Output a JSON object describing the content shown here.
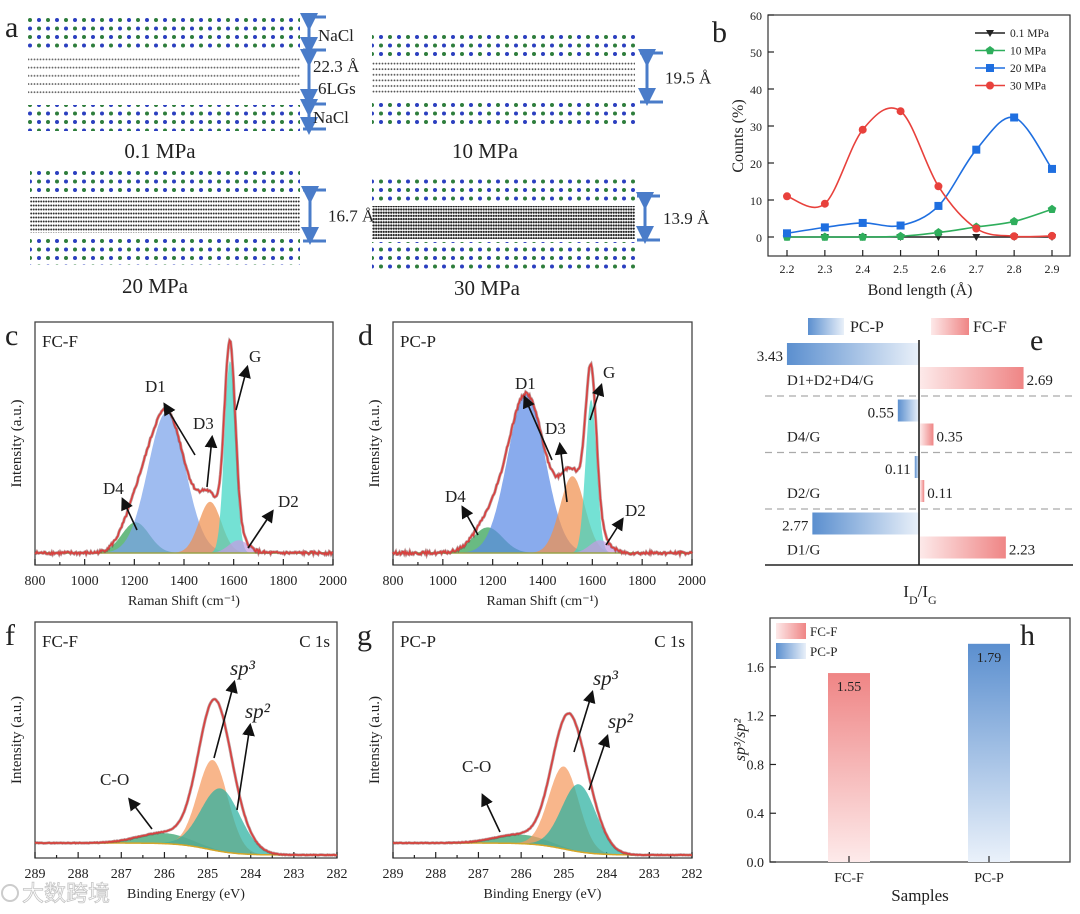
{
  "panel_labels": [
    "a",
    "b",
    "c",
    "d",
    "e",
    "f",
    "g",
    "h"
  ],
  "panel_a": {
    "snapshots": [
      {
        "pressure": "0.1 MPa",
        "spacing": "22.3 Å",
        "top_layer": "NaCl",
        "graphene": "6LGs",
        "bottom_layer": "NaCl"
      },
      {
        "pressure": "10 MPa",
        "spacing": "19.5 Å"
      },
      {
        "pressure": "20 MPa",
        "spacing": "16.7 Å"
      },
      {
        "pressure": "30 MPa",
        "spacing": "13.9 Å"
      }
    ],
    "colors": {
      "na": "#2b3fbf",
      "cl": "#2e7d3c",
      "carbon": "#5a5a5a",
      "bracket": "#4a7cc9"
    }
  },
  "chart_data": [
    {
      "type": "line",
      "xlabel": "Bond length (Å)",
      "ylabel": "Counts (%)",
      "x": [
        2.2,
        2.3,
        2.4,
        2.5,
        2.6,
        2.7,
        2.8,
        2.9
      ],
      "xticks": [
        "2.2",
        "2.3",
        "2.4",
        "2.5",
        "2.6",
        "2.7",
        "2.8",
        "2.9"
      ],
      "ylim": [
        -5,
        60
      ],
      "yticks": [
        "0",
        "10",
        "20",
        "30",
        "40",
        "50",
        "60"
      ],
      "legend": "top-right",
      "series": [
        {
          "name": "0.1 MPa",
          "color": "#222222",
          "marker": "triangle-down",
          "values": [
            0,
            0,
            0,
            0,
            0,
            0,
            0,
            0
          ]
        },
        {
          "name": "10 MPa",
          "color": "#2fae5c",
          "marker": "pentagon",
          "values": [
            0,
            0,
            0,
            0.2,
            1.2,
            2.7,
            4.2,
            7.5
          ]
        },
        {
          "name": "20 MPa",
          "color": "#1f6fe0",
          "marker": "square",
          "values": [
            1,
            2.6,
            3.8,
            3.1,
            8.4,
            23.6,
            32.3,
            18.4
          ]
        },
        {
          "name": "30 MPa",
          "color": "#e8413c",
          "marker": "circle",
          "values": [
            11,
            9,
            29,
            34,
            13.7,
            2.3,
            0.2,
            0.3
          ]
        }
      ]
    },
    {
      "type": "area",
      "inset_label": "FC-F",
      "xlabel": "Raman Shift (cm⁻¹)",
      "ylabel": "Intensity (a.u.)",
      "xlim": [
        800,
        2000
      ],
      "xticks": [
        "800",
        "1000",
        "1200",
        "1400",
        "1600",
        "1800",
        "2000"
      ],
      "fit_color": "#d9403f",
      "peaks": [
        {
          "name": "D4",
          "center": 1205,
          "width": 55,
          "amplitude": 0.12,
          "color": "#2fa052"
        },
        {
          "name": "D1",
          "center": 1330,
          "width": 75,
          "amplitude": 0.55,
          "color": "#7aa2ea"
        },
        {
          "name": "D3",
          "center": 1505,
          "width": 45,
          "amplitude": 0.2,
          "color": "#f0904f"
        },
        {
          "name": "G",
          "center": 1585,
          "width": 22,
          "amplitude": 0.75,
          "color": "#3fd6c4"
        },
        {
          "name": "D2",
          "center": 1620,
          "width": 40,
          "amplitude": 0.05,
          "color": "#c59be3"
        }
      ]
    },
    {
      "type": "area",
      "inset_label": "PC-P",
      "xlabel": "Raman Shift (cm⁻¹)",
      "ylabel": "Intensity (a.u.)",
      "xlim": [
        800,
        2000
      ],
      "xticks": [
        "800",
        "1000",
        "1200",
        "1400",
        "1600",
        "1800",
        "2000"
      ],
      "fit_color": "#d9403f",
      "peaks": [
        {
          "name": "D4",
          "center": 1180,
          "width": 60,
          "amplitude": 0.1,
          "color": "#2fa052"
        },
        {
          "name": "D1",
          "center": 1335,
          "width": 75,
          "amplitude": 0.62,
          "color": "#5b8be6"
        },
        {
          "name": "D3",
          "center": 1520,
          "width": 50,
          "amplitude": 0.3,
          "color": "#f0904f"
        },
        {
          "name": "G",
          "center": 1595,
          "width": 22,
          "amplitude": 0.6,
          "color": "#3fd6c4"
        },
        {
          "name": "D2",
          "center": 1630,
          "width": 40,
          "amplitude": 0.05,
          "color": "#c59be3"
        }
      ]
    },
    {
      "type": "bar",
      "orientation": "horizontal",
      "categories": [
        "D1+D2+D4/G",
        "D4/G",
        "D2/G",
        "D1/G"
      ],
      "series": [
        {
          "name": "PC-P",
          "values": [
            3.43,
            0.55,
            0.11,
            2.77
          ],
          "labels": [
            "3.43",
            "0.55",
            "0.11",
            "2.77"
          ],
          "color": "#5b8fcf"
        },
        {
          "name": "FC-F",
          "values": [
            2.69,
            0.35,
            0.11,
            2.23
          ],
          "labels": [
            "2.69",
            "0.35",
            "0.11",
            "2.23"
          ],
          "color": "#ef8585"
        }
      ],
      "xlabel_parts": [
        {
          "t": "I"
        },
        {
          "t": "D",
          "sub": true
        },
        {
          "t": "/I"
        },
        {
          "t": "G",
          "sub": true
        }
      ],
      "legend": "top"
    },
    {
      "type": "area",
      "inset_label": "FC-F",
      "corner_label": "C 1s",
      "xlabel": "Binding Energy (eV)",
      "ylabel": "Intensity (a.u.)",
      "xlim": [
        289,
        282
      ],
      "xticks": [
        "289",
        "288",
        "287",
        "286",
        "285",
        "284",
        "283",
        "282"
      ],
      "fit_color": "#d9403f",
      "peaks": [
        {
          "name": "C-O",
          "label": "C-O",
          "center": 286.0,
          "width": 0.6,
          "amplitude": 0.07,
          "color": "#2fa06a"
        },
        {
          "name": "sp3",
          "label": "sp³",
          "center": 284.88,
          "width": 0.35,
          "amplitude": 0.6,
          "color": "#f59a5e"
        },
        {
          "name": "sp2",
          "label": "sp²",
          "center": 284.7,
          "width": 0.45,
          "amplitude": 0.42,
          "color": "#2ab0a0"
        }
      ]
    },
    {
      "type": "area",
      "inset_label": "PC-P",
      "corner_label": "C 1s",
      "xlabel": "Binding Energy (eV)",
      "ylabel": "Intensity (a.u.)",
      "xlim": [
        289,
        282
      ],
      "xticks": [
        "289",
        "288",
        "287",
        "286",
        "285",
        "284",
        "283",
        "282"
      ],
      "fit_color": "#d9403f",
      "peaks": [
        {
          "name": "C-O",
          "label": "C-O",
          "center": 286.0,
          "width": 0.6,
          "amplitude": 0.06,
          "color": "#2fa06a"
        },
        {
          "name": "sp3",
          "label": "sp³",
          "center": 285.0,
          "width": 0.35,
          "amplitude": 0.55,
          "color": "#f59a5e"
        },
        {
          "name": "sp2",
          "label": "sp²",
          "center": 284.65,
          "width": 0.4,
          "amplitude": 0.45,
          "color": "#2ab0a0"
        }
      ]
    },
    {
      "type": "bar",
      "categories": [
        "FC-F",
        "PC-P"
      ],
      "values": [
        1.55,
        1.79
      ],
      "labels": [
        "1.55",
        "1.79"
      ],
      "colors": [
        "#ef8585",
        "#5b8fcf"
      ],
      "xlabel": "Samples",
      "ylabel": "sp³/sp²",
      "ylim": [
        0,
        2.0
      ],
      "yticks": [
        "0.0",
        "0.4",
        "0.8",
        "1.2",
        "1.6"
      ],
      "legend": "top-left"
    }
  ],
  "watermark": "大数跨境"
}
